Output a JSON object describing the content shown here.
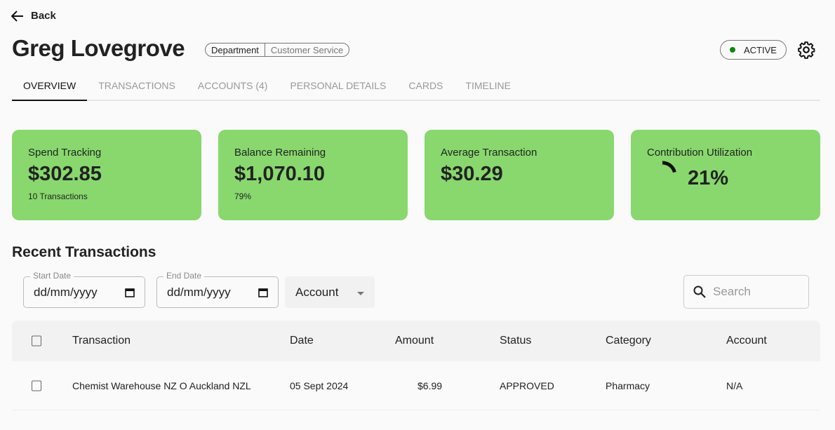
{
  "nav": {
    "back_label": "Back"
  },
  "header": {
    "title": "Greg Lovegrove",
    "department_label": "Department",
    "department_value": "Customer Service",
    "status": "ACTIVE",
    "status_color": "#0a8a0a"
  },
  "tabs": [
    "OVERVIEW",
    "TRANSACTIONS",
    "ACCOUNTS (4)",
    "PERSONAL DETAILS",
    "CARDS",
    "TIMELINE"
  ],
  "cards": [
    {
      "label": "Spend Tracking",
      "value": "$302.85",
      "sub": "10 Transactions"
    },
    {
      "label": "Balance Remaining",
      "value": "$1,070.10",
      "sub": "79%"
    },
    {
      "label": "Average Transaction",
      "value": "$30.29",
      "sub": ""
    },
    {
      "label": "Contribution Utilization",
      "value": "21%",
      "gauge_percent": 21
    }
  ],
  "card_color": "#88d86e",
  "recent": {
    "title": "Recent Transactions",
    "start_label": "Start Date",
    "start_value": "dd/mm/yyyy",
    "end_label": "End Date",
    "end_value": "dd/mm/yyyy",
    "account_select": "Account",
    "search_placeholder": "Search",
    "columns": [
      "Transaction",
      "Date",
      "Amount",
      "Status",
      "Category",
      "Account"
    ],
    "rows": [
      [
        "Chemist Warehouse NZ O Auckland NZL",
        "05 Sept 2024",
        "$6.99",
        "APPROVED",
        "Pharmacy",
        "N/A"
      ]
    ]
  }
}
